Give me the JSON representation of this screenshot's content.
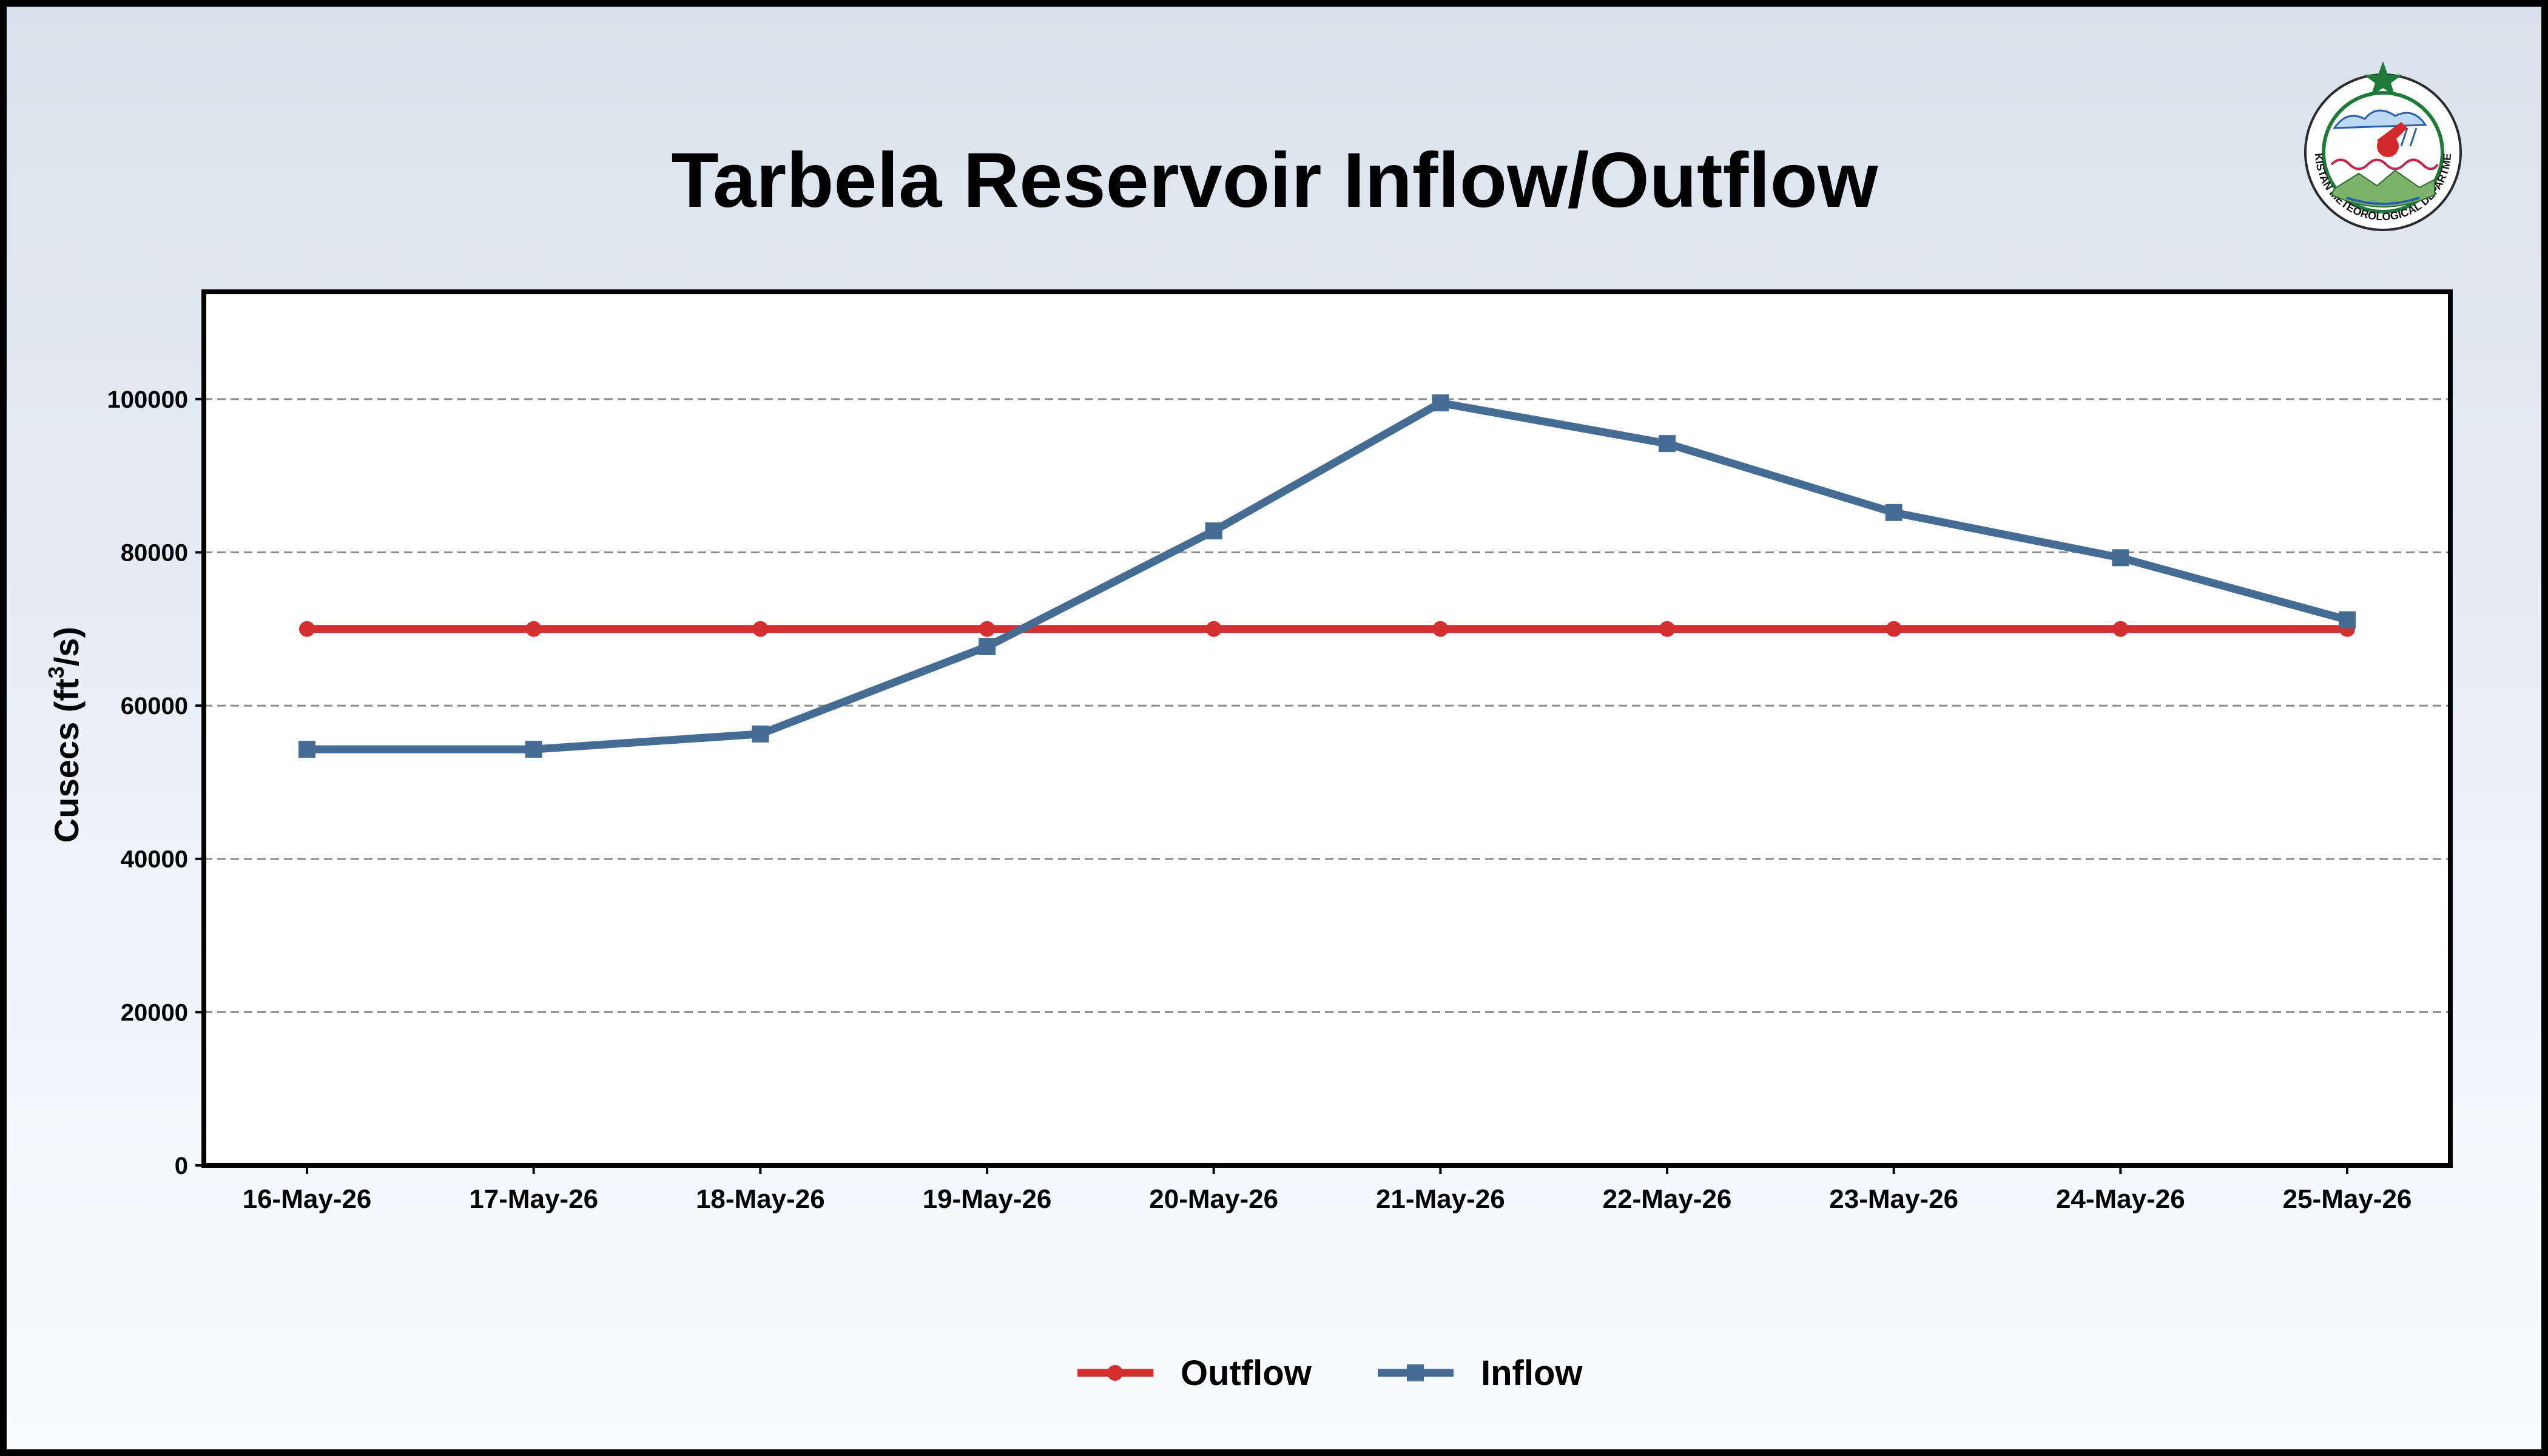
{
  "colors": {
    "outflow": "#d62f2f",
    "inflow": "#456d93",
    "frame": "#000000"
  },
  "logo": {
    "icon": "pakistan-meteorological-department-seal",
    "text": "PAKISTAN METEOROLOGICAL DEPARTMENT"
  },
  "chart_data": {
    "type": "line",
    "title": "Tarbela Reservoir Inflow/Outflow",
    "ylabel_main": "Cusecs (ft",
    "ylabel_sup": "3",
    "ylabel_tail": "/s)",
    "xlabel": "",
    "categories": [
      "16-May-26",
      "17-May-26",
      "18-May-26",
      "19-May-26",
      "20-May-26",
      "21-May-26",
      "22-May-26",
      "23-May-26",
      "24-May-26",
      "25-May-26"
    ],
    "ylim": [
      0,
      114000
    ],
    "yticks": [
      0,
      20000,
      40000,
      60000,
      80000,
      100000
    ],
    "grid": true,
    "legend_position": "bottom-center",
    "series": [
      {
        "name": "Outflow",
        "marker": "circle",
        "values": [
          70000,
          70000,
          70000,
          70000,
          70000,
          70000,
          70000,
          70000,
          70000,
          70000
        ]
      },
      {
        "name": "Inflow",
        "marker": "square",
        "values": [
          54300,
          54300,
          56300,
          67700,
          82800,
          99500,
          94200,
          85200,
          79300,
          71200
        ]
      }
    ]
  }
}
